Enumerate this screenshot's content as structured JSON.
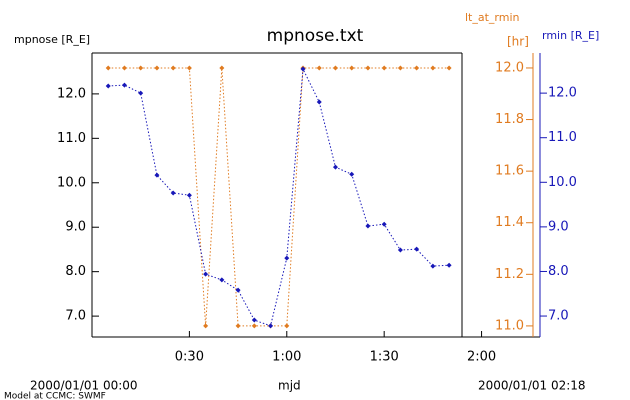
{
  "chart_data": {
    "type": "line",
    "title": "mpnose.txt",
    "y_label": "mpnose [R_E]",
    "y2_label": "lt_at_rmin",
    "y2_unit": "[hr]",
    "y3_label": "rmin [R_E]",
    "x_start_label": "2000/01/01 00:00",
    "x_label": "mjd",
    "x_end_label": "2000/01/01 02:18",
    "footer": "Model at CCMC: SWMF",
    "xlim": [
      0,
      138
    ],
    "xticks": [
      {
        "value": 30,
        "label": "0:30"
      },
      {
        "value": 60,
        "label": "1:00"
      },
      {
        "value": 90,
        "label": "1:30"
      },
      {
        "value": 120,
        "label": "2:00"
      }
    ],
    "ylim": [
      6.53,
      12.92
    ],
    "yticks": [
      {
        "value": 7,
        "label": "7.0"
      },
      {
        "value": 8,
        "label": "8.0"
      },
      {
        "value": 9,
        "label": "9.0"
      },
      {
        "value": 10,
        "label": "10.0"
      },
      {
        "value": 11,
        "label": "11.0"
      },
      {
        "value": 12,
        "label": "12.0"
      }
    ],
    "y2lim": [
      10.957,
      12.058
    ],
    "y2ticks": [
      {
        "value": 11,
        "label": "11.0"
      },
      {
        "value": 11.2,
        "label": "11.2"
      },
      {
        "value": 11.4,
        "label": "11.4"
      },
      {
        "value": 11.6,
        "label": "11.6"
      },
      {
        "value": 11.8,
        "label": "11.8"
      },
      {
        "value": 12,
        "label": "12.0"
      }
    ],
    "y3lim": [
      6.53,
      12.9
    ],
    "y3ticks": [
      {
        "value": 7,
        "label": "7.0"
      },
      {
        "value": 8,
        "label": "8.0"
      },
      {
        "value": 9,
        "label": "9.0"
      },
      {
        "value": 10,
        "label": "10.0"
      },
      {
        "value": 11,
        "label": "11.0"
      },
      {
        "value": 12,
        "label": "12.0"
      }
    ],
    "x": [
      5,
      10,
      15,
      20,
      25,
      30,
      35,
      40,
      45,
      50,
      55,
      60,
      65,
      70,
      75,
      80,
      85,
      90,
      95,
      100,
      105,
      110
    ],
    "series": [
      {
        "name": "lt_at_rmin",
        "color": "#e07b20",
        "axis": "y2",
        "values": [
          12,
          12,
          12,
          12,
          12,
          12,
          11,
          12,
          11,
          11,
          11,
          11,
          12,
          12,
          12,
          12,
          12,
          12,
          12,
          12,
          12,
          12
        ]
      },
      {
        "name": "rmin",
        "color": "#1818b8",
        "axis": "y3",
        "values": [
          12.16,
          12.18,
          12.0,
          10.16,
          9.76,
          9.71,
          7.94,
          7.81,
          7.58,
          6.91,
          6.78,
          8.3,
          12.54,
          11.8,
          10.34,
          10.18,
          9.02,
          9.06,
          8.48,
          8.5,
          8.12,
          8.14
        ]
      }
    ]
  }
}
